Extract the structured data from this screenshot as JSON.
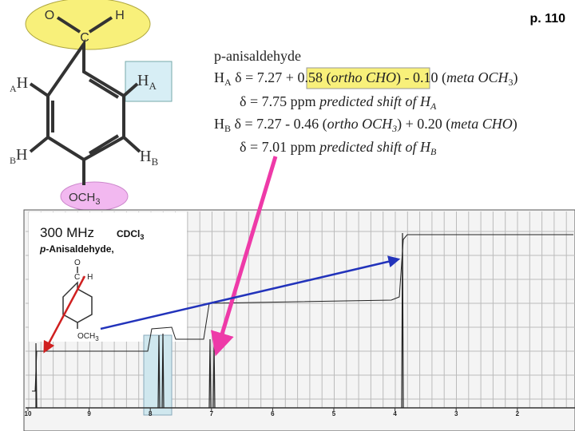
{
  "page_number": "p. 110",
  "structure": {
    "aldehyde_o": "O",
    "aldehyde_h": "H",
    "aldehyde_c": "C",
    "h_a_left": [
      "A",
      "H"
    ],
    "h_a_right": [
      "H",
      "A"
    ],
    "h_b_left": [
      "B",
      "H"
    ],
    "h_b_right": [
      "H",
      "B"
    ],
    "methoxy": [
      "OCH",
      "3"
    ]
  },
  "notes": {
    "title": "p-anisaldehyde",
    "lines": [
      [
        "H",
        "A",
        " δ = 7.27 + ",
        "0.58 (",
        "ortho CHO",
        ")",
        " - 0.10 (",
        "meta OCH",
        "3",
        ")"
      ],
      [
        "δ = 7.75 ppm ",
        "predicted shift of H",
        "A"
      ],
      [
        "H",
        "B",
        " δ = 7.27 - 0.46 (",
        "ortho OCH",
        "3",
        ") + 0.20 (",
        "meta CHO",
        ")"
      ],
      [
        "δ = 7.01 ppm ",
        "predicted shift of H",
        "B"
      ]
    ]
  },
  "spectrum": {
    "frequency": "300 MHz",
    "solvent": [
      "CDCl",
      "3"
    ],
    "compound": [
      "p",
      "-Anisaldehyde,"
    ],
    "inset": {
      "o": "O",
      "ch": "C - H",
      "methoxy": [
        "OCH",
        "3"
      ]
    },
    "axis_labels": [
      "10",
      "9",
      "8",
      "7",
      "6",
      "5",
      "4",
      "3",
      "2"
    ]
  }
}
